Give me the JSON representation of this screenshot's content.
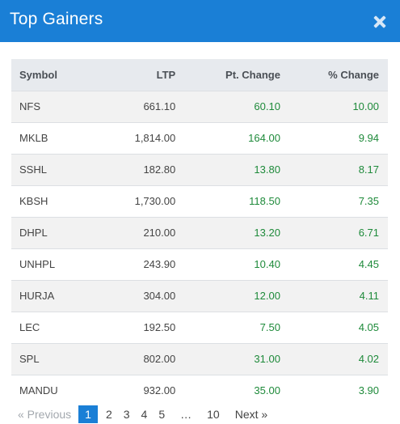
{
  "modal": {
    "title": "Top Gainers",
    "accent_color": "#1a7fd6",
    "close_icon": "close-icon"
  },
  "table": {
    "headers": {
      "symbol": "Symbol",
      "ltp": "LTP",
      "pt_change": "Pt. Change",
      "pct_change": "% Change"
    },
    "rows": [
      {
        "symbol": "NFS",
        "ltp": "661.10",
        "pt_change": "60.10",
        "pct_change": "10.00"
      },
      {
        "symbol": "MKLB",
        "ltp": "1,814.00",
        "pt_change": "164.00",
        "pct_change": "9.94"
      },
      {
        "symbol": "SSHL",
        "ltp": "182.80",
        "pt_change": "13.80",
        "pct_change": "8.17"
      },
      {
        "symbol": "KBSH",
        "ltp": "1,730.00",
        "pt_change": "118.50",
        "pct_change": "7.35"
      },
      {
        "symbol": "DHPL",
        "ltp": "210.00",
        "pt_change": "13.20",
        "pct_change": "6.71"
      },
      {
        "symbol": "UNHPL",
        "ltp": "243.90",
        "pt_change": "10.40",
        "pct_change": "4.45"
      },
      {
        "symbol": "HURJA",
        "ltp": "304.00",
        "pt_change": "12.00",
        "pct_change": "4.11"
      },
      {
        "symbol": "LEC",
        "ltp": "192.50",
        "pt_change": "7.50",
        "pct_change": "4.05"
      },
      {
        "symbol": "SPL",
        "ltp": "802.00",
        "pt_change": "31.00",
        "pct_change": "4.02"
      },
      {
        "symbol": "MANDU",
        "ltp": "932.00",
        "pt_change": "35.00",
        "pct_change": "3.90"
      }
    ],
    "positive_color": "#1e8a3a"
  },
  "pagination": {
    "prev_label": "« Previous",
    "pages": [
      "1",
      "2",
      "3",
      "4",
      "5"
    ],
    "ellipsis": "…",
    "last_page": "10",
    "next_label": "Next »",
    "active_page": "1"
  }
}
